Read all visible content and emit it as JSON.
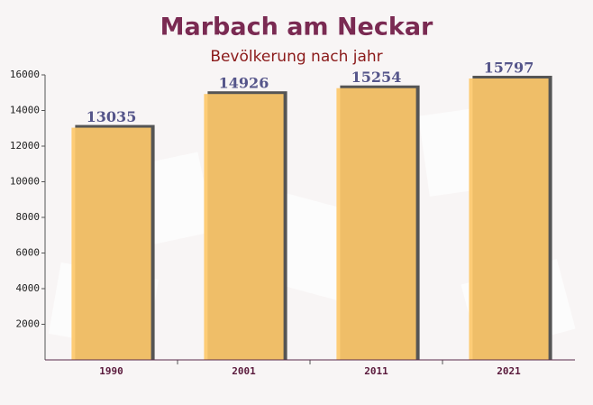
{
  "chart_data": {
    "type": "bar",
    "title": "Marbach am Neckar",
    "subtitle": "Bevölkerung nach jahr",
    "categories": [
      "1990",
      "2001",
      "2011",
      "2021"
    ],
    "values": [
      13035,
      14926,
      15254,
      15797
    ],
    "color": "#fdc86a",
    "ylim": [
      0,
      16000
    ],
    "yticks": [
      2000,
      4000,
      6000,
      8000,
      10000,
      12000,
      14000,
      16000
    ]
  }
}
